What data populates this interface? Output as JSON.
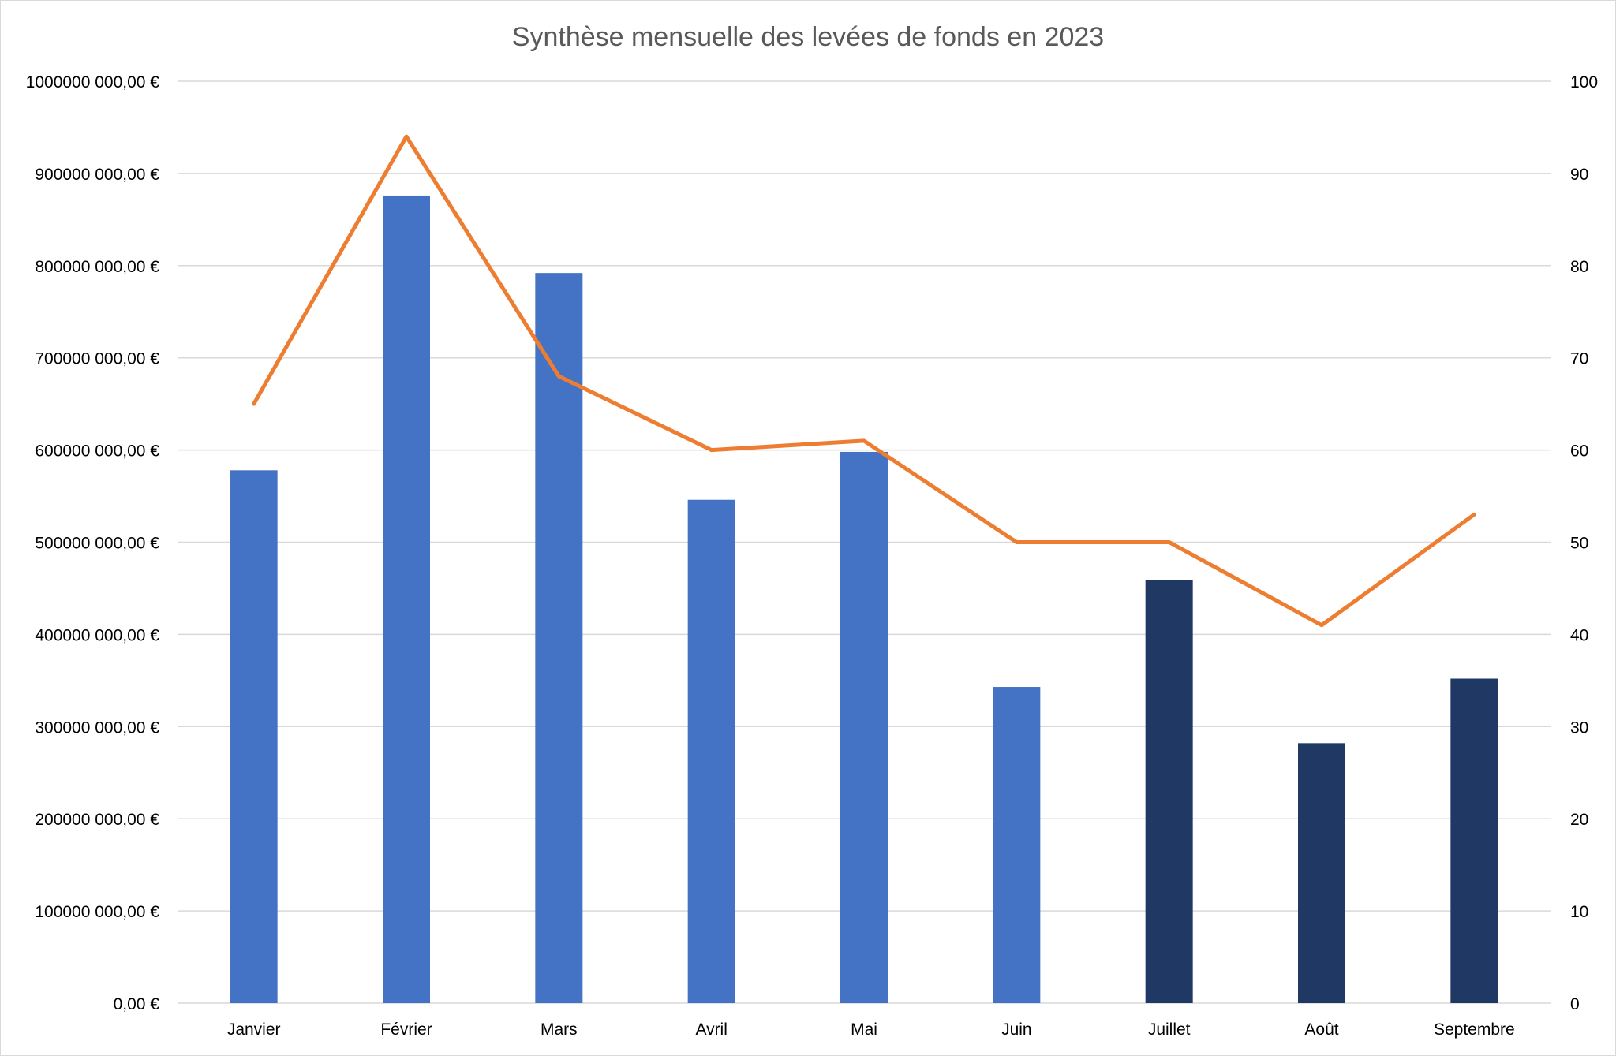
{
  "chart_data": {
    "type": "bar",
    "title": "Synthèse mensuelle des levées de fonds en 2023",
    "categories": [
      "Janvier",
      "Février",
      "Mars",
      "Avril",
      "Mai",
      "Juin",
      "Juillet",
      "Août",
      "Septembre"
    ],
    "series": [
      {
        "type": "bar",
        "values": [
          578000000,
          876000000,
          792000000,
          546000000,
          598000000,
          343000000,
          459000000,
          282000000,
          352000000
        ],
        "colors": [
          "#4472C4",
          "#4472C4",
          "#4472C4",
          "#4472C4",
          "#4472C4",
          "#4472C4",
          "#1F3864",
          "#1F3864",
          "#1F3864"
        ],
        "axis": "left"
      },
      {
        "type": "line",
        "values": [
          65,
          94,
          68,
          60,
          61,
          50,
          50,
          41,
          53
        ],
        "color": "#ED7D31",
        "axis": "right"
      }
    ],
    "y_left": {
      "ylim": [
        0,
        1000000000
      ],
      "ticks": [
        "0,00 €",
        "100000 000,00 €",
        "200000 000,00 €",
        "300000 000,00 €",
        "400000 000,00 €",
        "500000 000,00 €",
        "600000 000,00 €",
        "700000 000,00 €",
        "800000 000,00 €",
        "900000 000,00 €",
        "1000000 000,00 €"
      ]
    },
    "y_right": {
      "ylim": [
        0,
        100
      ],
      "ticks": [
        "0",
        "10",
        "20",
        "30",
        "40",
        "50",
        "60",
        "70",
        "80",
        "90",
        "100"
      ]
    },
    "grid": true,
    "legend": "none"
  }
}
